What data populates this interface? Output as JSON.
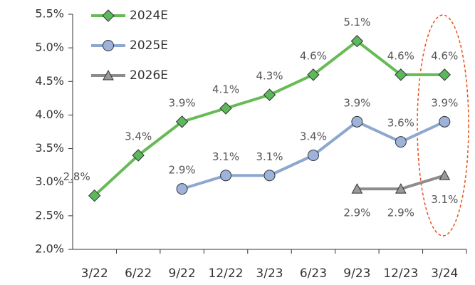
{
  "chart_data": {
    "type": "line",
    "categories": [
      "3/22",
      "6/22",
      "9/22",
      "12/22",
      "3/23",
      "6/23",
      "9/23",
      "12/23",
      "3/24"
    ],
    "series": [
      {
        "name": "2024E",
        "color": "#5cb85c",
        "line_color": "#66bb55",
        "marker": "diamond",
        "values": [
          2.8,
          3.4,
          3.9,
          4.1,
          4.3,
          4.6,
          5.1,
          4.6,
          4.6
        ],
        "value_labels": [
          "2.8%",
          "3.4%",
          "3.9%",
          "4.1%",
          "4.3%",
          "4.6%",
          "5.1%",
          "4.6%",
          "4.6%"
        ]
      },
      {
        "name": "2025E",
        "color": "#9db3d9",
        "line_color": "#8ea7cf",
        "marker": "circle",
        "values": [
          null,
          null,
          2.9,
          3.1,
          3.1,
          3.4,
          3.9,
          3.6,
          3.9
        ],
        "value_labels": [
          null,
          null,
          "2.9%",
          "3.1%",
          "3.1%",
          "3.4%",
          "3.9%",
          "3.6%",
          "3.9%"
        ]
      },
      {
        "name": "2026E",
        "color": "#9a9a9a",
        "line_color": "#8c8c8c",
        "marker": "triangle",
        "values": [
          null,
          null,
          null,
          null,
          null,
          null,
          2.9,
          2.9,
          3.1
        ],
        "value_labels": [
          null,
          null,
          null,
          null,
          null,
          null,
          "2.9%",
          "2.9%",
          "3.1%"
        ]
      }
    ],
    "ylim": [
      2.0,
      5.5
    ],
    "yticks": [
      {
        "value": 2.0,
        "label": "2.0%"
      },
      {
        "value": 2.5,
        "label": "2.5%"
      },
      {
        "value": 3.0,
        "label": "3.0%"
      },
      {
        "value": 3.5,
        "label": "3.5%"
      },
      {
        "value": 4.0,
        "label": "4.0%"
      },
      {
        "value": 4.5,
        "label": "4.5%"
      },
      {
        "value": 5.0,
        "label": "5.0%"
      },
      {
        "value": 5.5,
        "label": "5.5%"
      }
    ],
    "grid": false,
    "legend": "upper left"
  }
}
